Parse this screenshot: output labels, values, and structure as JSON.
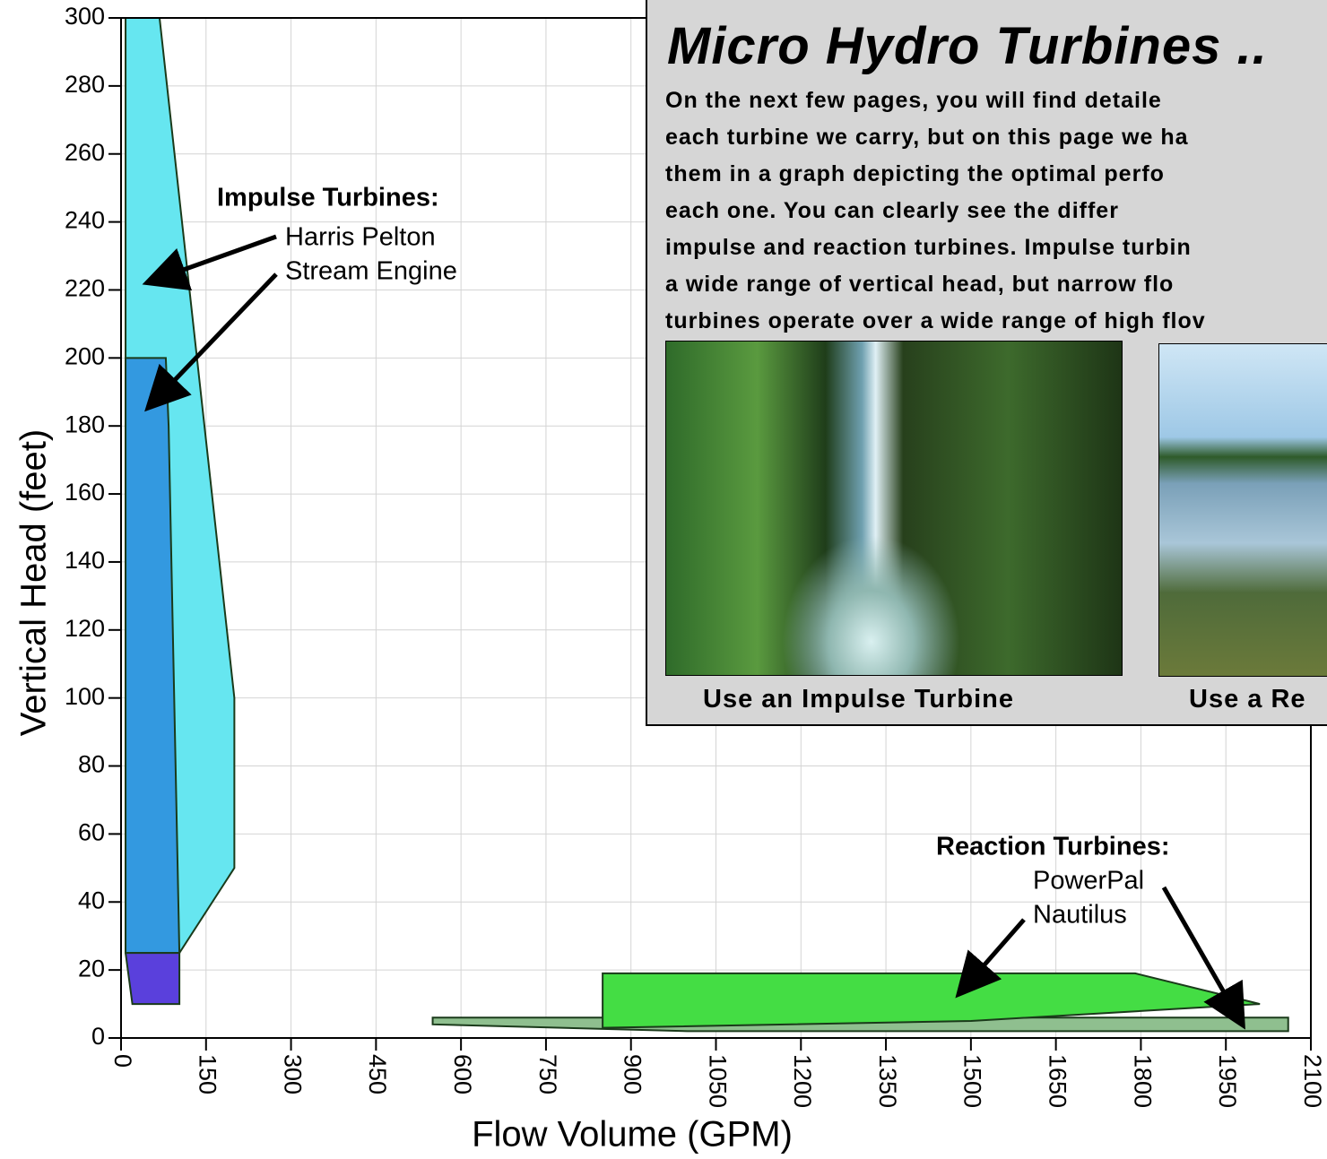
{
  "chart_data": {
    "type": "polygon",
    "xlabel": "Flow Volume (GPM)",
    "ylabel": "Vertical Head (feet)",
    "xlim": [
      0,
      2100
    ],
    "ylim": [
      0,
      300
    ],
    "xticks": [
      0,
      150,
      300,
      450,
      600,
      750,
      900,
      1050,
      1200,
      1350,
      1500,
      1650,
      1800,
      1950,
      2100
    ],
    "yticks": [
      0,
      20,
      40,
      60,
      80,
      100,
      120,
      140,
      160,
      180,
      200,
      220,
      240,
      260,
      280,
      300
    ],
    "grid": true,
    "series": [
      {
        "name": "Harris Pelton",
        "color": "#66e6f0",
        "x": [
          8,
          68,
          200,
          200,
          103,
          8
        ],
        "y": [
          300,
          300,
          100,
          50,
          25,
          25
        ]
      },
      {
        "name": "Stream Engine",
        "color": "#3399e0",
        "x": [
          8,
          79,
          84,
          103,
          8
        ],
        "y": [
          200,
          200,
          180,
          25,
          25
        ]
      },
      {
        "name": "Nautilus",
        "color": "#8fbf8f",
        "x": [
          550,
          2060,
          2060,
          1000,
          550
        ],
        "y": [
          6,
          6,
          2,
          2,
          4
        ]
      },
      {
        "name": "PowerPal",
        "color": "#44dd44",
        "x": [
          850,
          1790,
          2010,
          1500,
          850
        ],
        "y": [
          19,
          19,
          10,
          5,
          3
        ]
      },
      {
        "color": "#5a40dc",
        "x": [
          8,
          103,
          103,
          20
        ],
        "y": [
          25,
          25,
          10,
          10
        ]
      }
    ],
    "annotations": [
      "Impulse Turbines:",
      "Harris Pelton",
      "Stream Engine",
      "Reaction Turbines:",
      "PowerPal",
      "Nautilus"
    ]
  },
  "panel": {
    "title": "Micro Hydro Turbines ..",
    "lines": [
      "On the next few pages, you will find detaile",
      "each turbine we carry, but on this page we ha",
      "them in a graph depicting the optimal perfo",
      "each one.  You can clearly see the differ",
      "impulse and reaction turbines.  Impulse turbin",
      "a wide range of vertical head, but narrow flo",
      "turbines operate over a wide range of high flov"
    ],
    "captions": [
      "Use an Impulse Turbine",
      "Use a Re"
    ]
  }
}
